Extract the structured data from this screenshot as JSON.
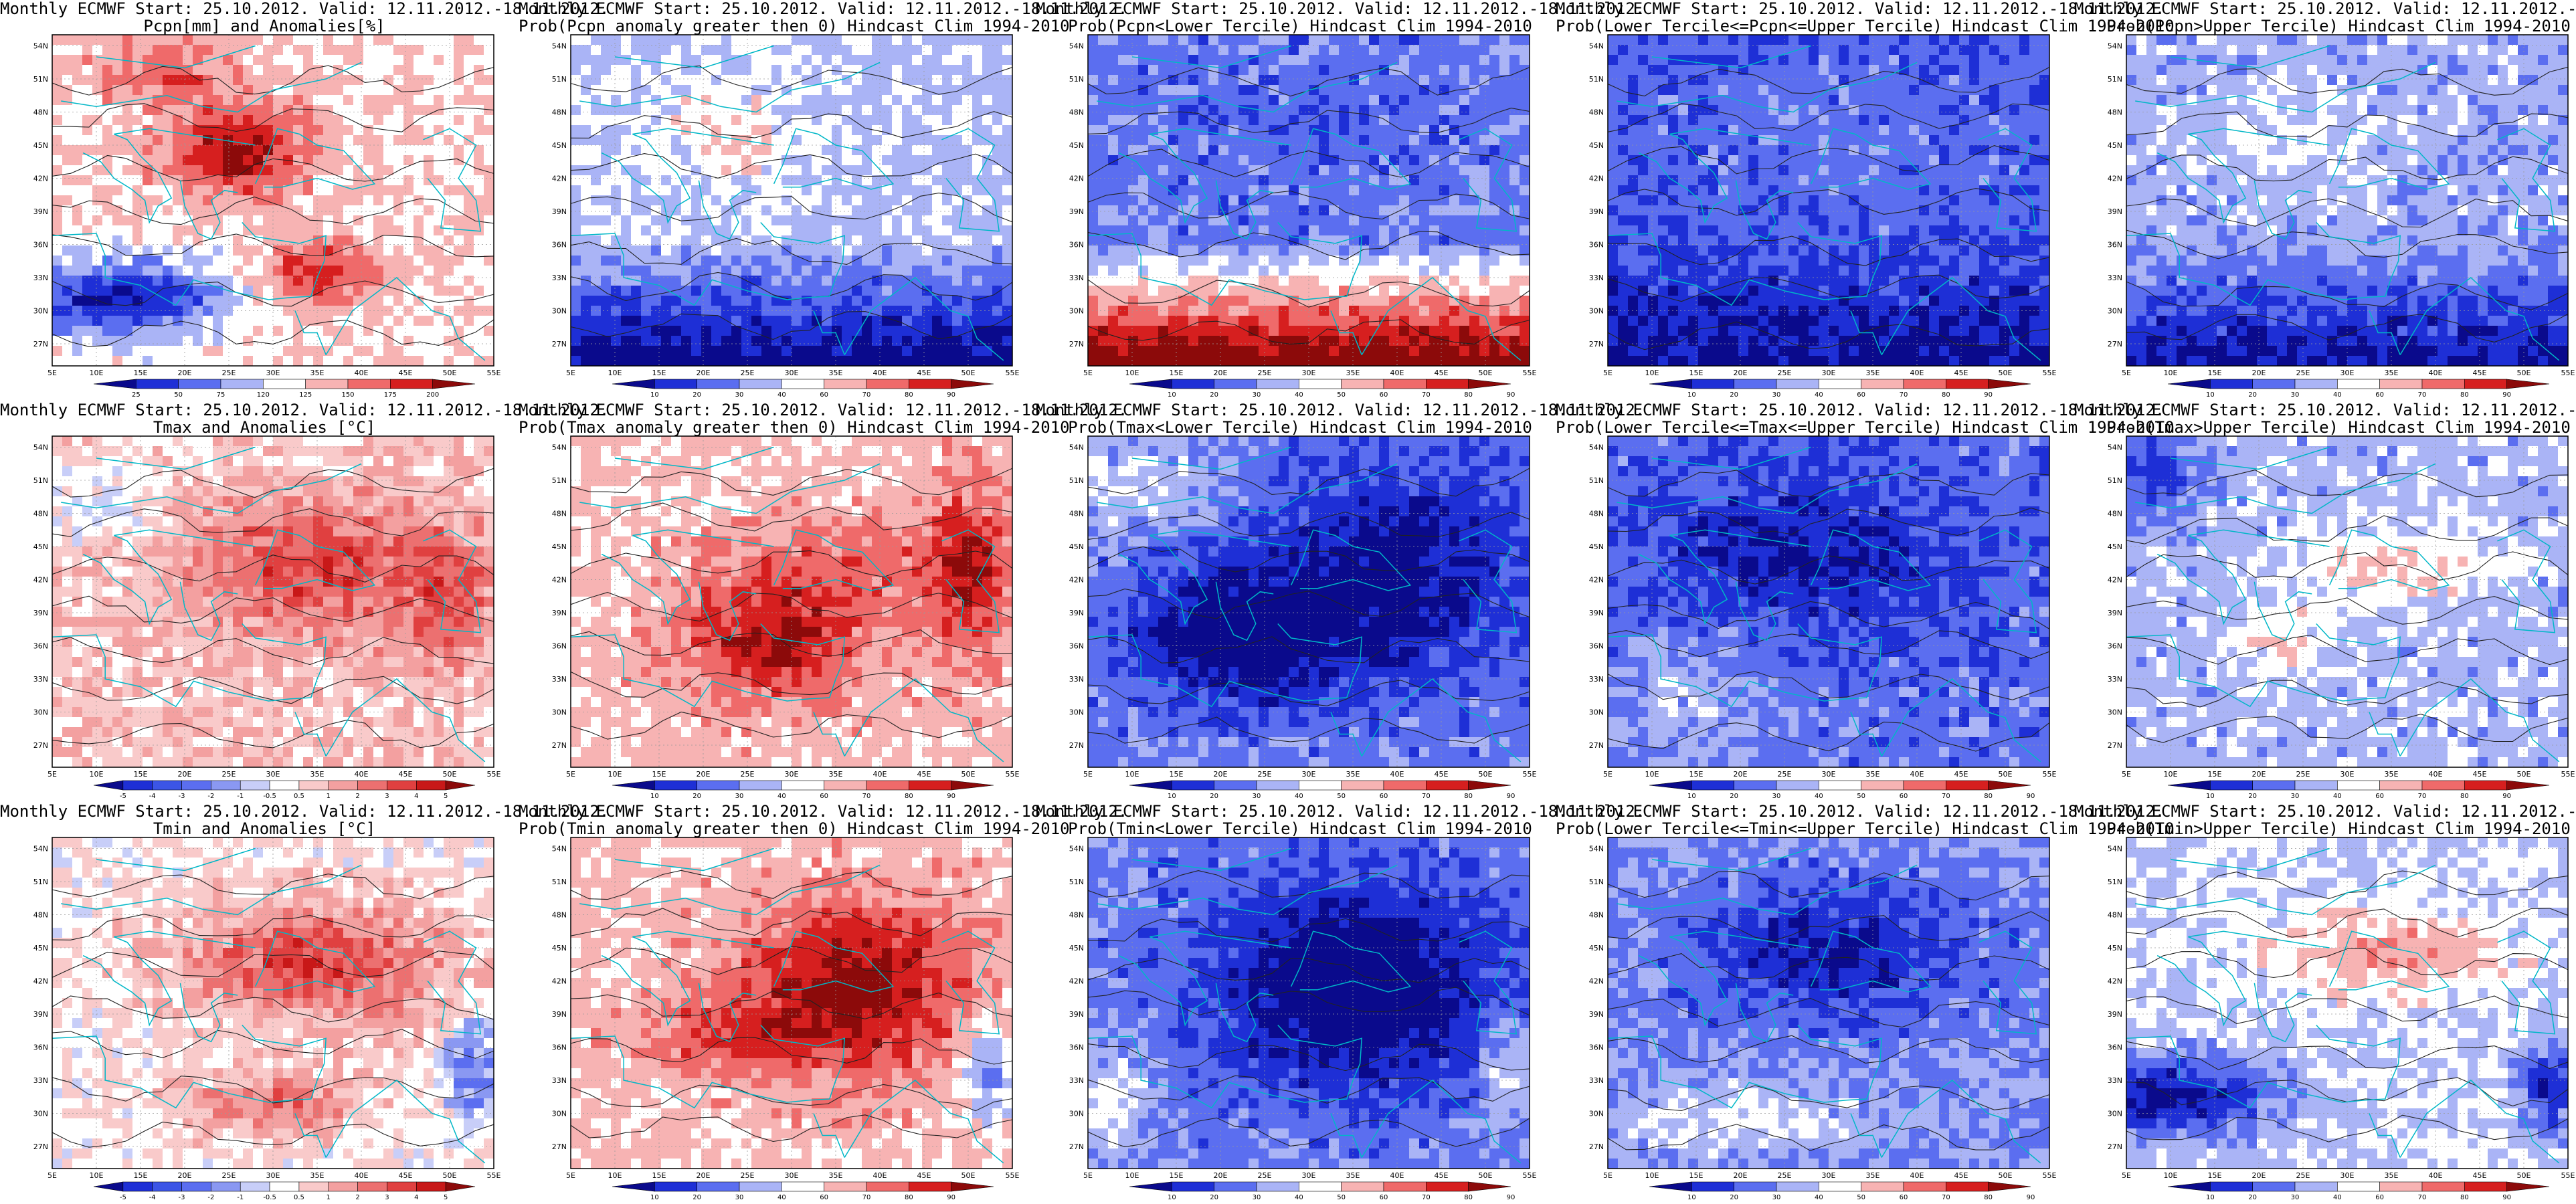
{
  "figure": {
    "common_title": "Monthly ECMWF Start: 25.10.2012. Valid: 12.11.2012.-18.11.2012.",
    "x_ticks": [
      "5E",
      "10E",
      "15E",
      "20E",
      "25E",
      "30E",
      "35E",
      "40E",
      "45E",
      "50E",
      "55E"
    ],
    "y_ticks": [
      "27N",
      "30N",
      "33N",
      "36N",
      "39N",
      "42N",
      "45N",
      "48N",
      "51N",
      "54N"
    ],
    "map_extent": {
      "lon": [
        5,
        55
      ],
      "lat": [
        25,
        55
      ]
    }
  },
  "panels": [
    {
      "id": "pcpn-anom",
      "title_line2": "Pcpn[mm] and Anomalies[%]",
      "variable": "precipitation",
      "kind": "anomaly_pcpn",
      "colorbar": {
        "labels": [
          "25",
          "50",
          "75",
          "120",
          "125",
          "150",
          "175",
          "200"
        ],
        "colors": [
          "#0a0a8c",
          "#1e2fd6",
          "#5b6ef0",
          "#aab4f6",
          "#ffffff",
          "#f7b3b3",
          "#ef6a6a",
          "#d61f1f",
          "#8c0a0a"
        ]
      }
    },
    {
      "id": "pcpn-prob-gt0",
      "title_line2": "Prob(Pcpn anomaly greater then 0) Hindcast Clim 1994-2010",
      "variable": "precipitation",
      "kind": "prob",
      "colorbar": {
        "labels": [
          "10",
          "20",
          "30",
          "40",
          "60",
          "70",
          "80",
          "90"
        ],
        "colors": [
          "#0a0a8c",
          "#1e2fd6",
          "#5b6ef0",
          "#aab4f6",
          "#ffffff",
          "#f7b3b3",
          "#ef6a6a",
          "#d61f1f",
          "#8c0a0a"
        ]
      }
    },
    {
      "id": "pcpn-prob-lower",
      "title_line2": "Prob(Pcpn<Lower Tercile) Hindcast Clim 1994-2010",
      "variable": "precipitation",
      "kind": "prob",
      "colorbar": {
        "labels": [
          "10",
          "20",
          "30",
          "40",
          "50",
          "60",
          "70",
          "80",
          "90"
        ],
        "colors": [
          "#0a0a8c",
          "#1e2fd6",
          "#5b6ef0",
          "#aab4f6",
          "#ffffff",
          "#f7b3b3",
          "#ef6a6a",
          "#d61f1f",
          "#8c0a0a"
        ]
      }
    },
    {
      "id": "pcpn-prob-middle",
      "title_line2": "Prob(Lower Tercile<=Pcpn<=Upper Tercile) Hindcast Clim 1994-2010",
      "variable": "precipitation",
      "kind": "prob",
      "colorbar": {
        "labels": [
          "10",
          "20",
          "30",
          "40",
          "60",
          "70",
          "80",
          "90"
        ],
        "colors": [
          "#0a0a8c",
          "#1e2fd6",
          "#5b6ef0",
          "#aab4f6",
          "#ffffff",
          "#f7b3b3",
          "#ef6a6a",
          "#d61f1f",
          "#8c0a0a"
        ]
      }
    },
    {
      "id": "pcpn-prob-upper",
      "title_line2": "Prob(Pcpn>Upper Tercile) Hindcast Clim 1994-2010",
      "variable": "precipitation",
      "kind": "prob",
      "colorbar": {
        "labels": [
          "10",
          "20",
          "30",
          "40",
          "60",
          "70",
          "80",
          "90"
        ],
        "colors": [
          "#0a0a8c",
          "#1e2fd6",
          "#5b6ef0",
          "#aab4f6",
          "#ffffff",
          "#f7b3b3",
          "#ef6a6a",
          "#d61f1f",
          "#8c0a0a"
        ]
      }
    },
    {
      "id": "tmax-anom",
      "title_line2": "Tmax and Anomalies [°C]",
      "variable": "tmax",
      "kind": "anomaly_temp",
      "colorbar": {
        "labels": [
          "-5",
          "-4",
          "-3",
          "-2",
          "-1",
          "-0.5",
          "0.5",
          "1",
          "2",
          "3",
          "4",
          "5"
        ],
        "colors": [
          "#0a0a8c",
          "#1e2fd6",
          "#3c55e6",
          "#5b6ef0",
          "#8a98f2",
          "#c8cef8",
          "#ffffff",
          "#f9caca",
          "#f3a0a0",
          "#ec7070",
          "#e04040",
          "#c81818",
          "#8c0a0a"
        ]
      }
    },
    {
      "id": "tmax-prob-gt0",
      "title_line2": "Prob(Tmax anomaly greater then 0) Hindcast Clim 1994-2010",
      "variable": "tmax",
      "kind": "prob",
      "colorbar": {
        "labels": [
          "10",
          "20",
          "30",
          "40",
          "60",
          "70",
          "80",
          "90"
        ],
        "colors": [
          "#0a0a8c",
          "#1e2fd6",
          "#5b6ef0",
          "#aab4f6",
          "#ffffff",
          "#f7b3b3",
          "#ef6a6a",
          "#d61f1f",
          "#8c0a0a"
        ]
      }
    },
    {
      "id": "tmax-prob-lower",
      "title_line2": "Prob(Tmax<Lower Tercile) Hindcast Clim 1994-2010",
      "variable": "tmax",
      "kind": "prob",
      "colorbar": {
        "labels": [
          "10",
          "20",
          "30",
          "40",
          "50",
          "60",
          "70",
          "80",
          "90"
        ],
        "colors": [
          "#0a0a8c",
          "#1e2fd6",
          "#5b6ef0",
          "#aab4f6",
          "#ffffff",
          "#f7b3b3",
          "#ef6a6a",
          "#d61f1f",
          "#8c0a0a"
        ]
      }
    },
    {
      "id": "tmax-prob-middle",
      "title_line2": "Prob(Lower Tercile<=Tmax<=Upper Tercile) Hindcast Clim 1994-2010",
      "variable": "tmax",
      "kind": "prob",
      "colorbar": {
        "labels": [
          "10",
          "20",
          "30",
          "40",
          "50",
          "60",
          "70",
          "80",
          "90"
        ],
        "colors": [
          "#0a0a8c",
          "#1e2fd6",
          "#5b6ef0",
          "#aab4f6",
          "#ffffff",
          "#f7b3b3",
          "#ef6a6a",
          "#d61f1f",
          "#8c0a0a"
        ]
      }
    },
    {
      "id": "tmax-prob-upper",
      "title_line2": "Prob(Tmax>Upper Tercile) Hindcast Clim 1994-2010",
      "variable": "tmax",
      "kind": "prob",
      "colorbar": {
        "labels": [
          "10",
          "20",
          "30",
          "40",
          "60",
          "70",
          "80",
          "90"
        ],
        "colors": [
          "#0a0a8c",
          "#1e2fd6",
          "#5b6ef0",
          "#aab4f6",
          "#ffffff",
          "#f7b3b3",
          "#ef6a6a",
          "#d61f1f",
          "#8c0a0a"
        ]
      }
    },
    {
      "id": "tmin-anom",
      "title_line2": "Tmin and Anomalies [°C]",
      "variable": "tmin",
      "kind": "anomaly_temp",
      "colorbar": {
        "labels": [
          "-5",
          "-4",
          "-3",
          "-2",
          "-1",
          "-0.5",
          "0.5",
          "1",
          "2",
          "3",
          "4",
          "5"
        ],
        "colors": [
          "#0a0a8c",
          "#1e2fd6",
          "#3c55e6",
          "#5b6ef0",
          "#8a98f2",
          "#c8cef8",
          "#ffffff",
          "#f9caca",
          "#f3a0a0",
          "#ec7070",
          "#e04040",
          "#c81818",
          "#8c0a0a"
        ]
      }
    },
    {
      "id": "tmin-prob-gt0",
      "title_line2": "Prob(Tmin anomaly greater then 0) Hindcast Clim 1994-2010",
      "variable": "tmin",
      "kind": "prob",
      "colorbar": {
        "labels": [
          "10",
          "20",
          "30",
          "40",
          "60",
          "70",
          "80",
          "90"
        ],
        "colors": [
          "#0a0a8c",
          "#1e2fd6",
          "#5b6ef0",
          "#aab4f6",
          "#ffffff",
          "#f7b3b3",
          "#ef6a6a",
          "#d61f1f",
          "#8c0a0a"
        ]
      }
    },
    {
      "id": "tmin-prob-lower",
      "title_line2": "Prob(Tmin<Lower Tercile) Hindcast Clim 1994-2010",
      "variable": "tmin",
      "kind": "prob",
      "colorbar": {
        "labels": [
          "10",
          "20",
          "30",
          "40",
          "50",
          "60",
          "70",
          "80",
          "90"
        ],
        "colors": [
          "#0a0a8c",
          "#1e2fd6",
          "#5b6ef0",
          "#aab4f6",
          "#ffffff",
          "#f7b3b3",
          "#ef6a6a",
          "#d61f1f",
          "#8c0a0a"
        ]
      }
    },
    {
      "id": "tmin-prob-middle",
      "title_line2": "Prob(Lower Tercile<=Tmin<=Upper Tercile) Hindcast Clim 1994-2010",
      "variable": "tmin",
      "kind": "prob",
      "colorbar": {
        "labels": [
          "10",
          "20",
          "30",
          "40",
          "50",
          "60",
          "70",
          "80",
          "90"
        ],
        "colors": [
          "#0a0a8c",
          "#1e2fd6",
          "#5b6ef0",
          "#aab4f6",
          "#ffffff",
          "#f7b3b3",
          "#ef6a6a",
          "#d61f1f",
          "#8c0a0a"
        ]
      }
    },
    {
      "id": "tmin-prob-upper",
      "title_line2": "Prob(Tmin>Upper Tercile) Hindcast Clim 1994-2010",
      "variable": "tmin",
      "kind": "prob",
      "colorbar": {
        "labels": [
          "10",
          "20",
          "30",
          "40",
          "60",
          "70",
          "80",
          "90"
        ],
        "colors": [
          "#0a0a8c",
          "#1e2fd6",
          "#5b6ef0",
          "#aab4f6",
          "#ffffff",
          "#f7b3b3",
          "#ef6a6a",
          "#d61f1f",
          "#8c0a0a"
        ]
      }
    }
  ],
  "style": {
    "coast_color": "#00b7c7",
    "contour_color": "#222222",
    "grid_color": "#9a9a9a"
  }
}
